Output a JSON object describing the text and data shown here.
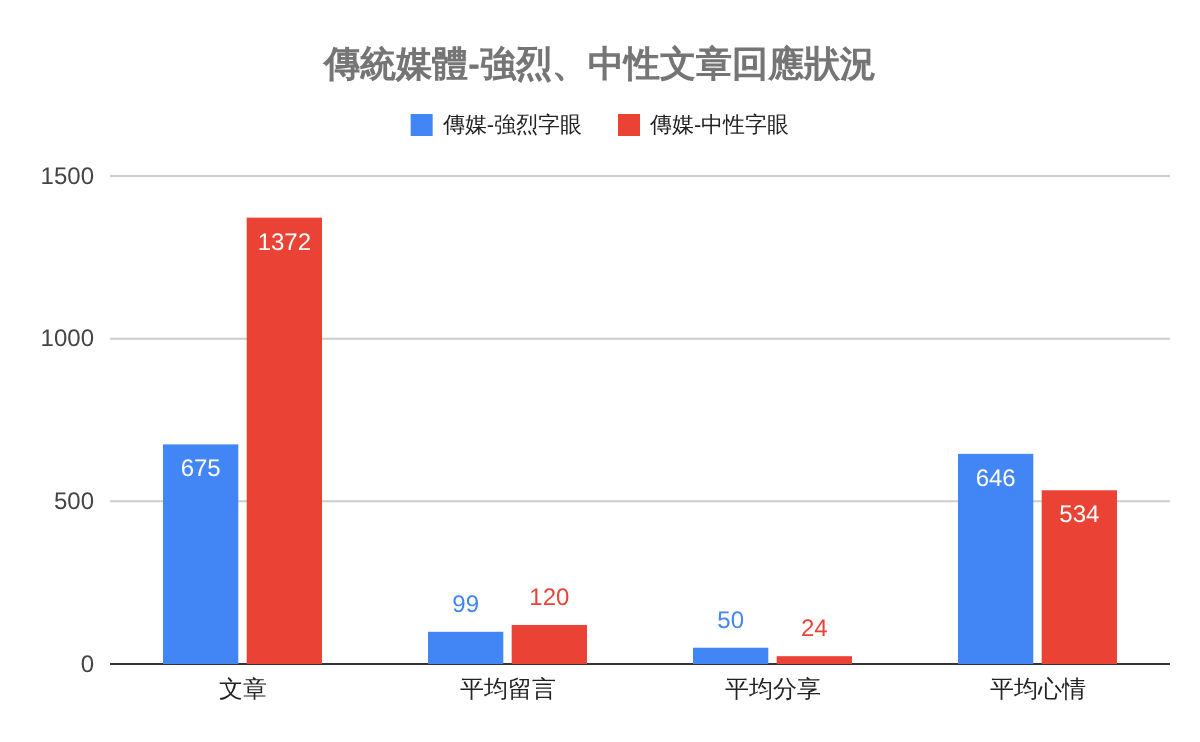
{
  "chart_data": {
    "type": "bar",
    "title": "傳統媒體-強烈、中性文章回應狀況",
    "categories": [
      "文章",
      "平均留言",
      "平均分享",
      "平均心情"
    ],
    "series": [
      {
        "name": "傳媒-強烈字眼",
        "color": "#4285f4",
        "values": [
          675,
          99,
          50,
          646
        ]
      },
      {
        "name": "傳媒-中性字眼",
        "color": "#ea4335",
        "values": [
          1372,
          120,
          24,
          534
        ]
      }
    ],
    "ylim": [
      0,
      1500
    ],
    "yticks": [
      0,
      500,
      1000,
      1500
    ],
    "grid": "y",
    "legend": "top",
    "data_labels": true
  }
}
